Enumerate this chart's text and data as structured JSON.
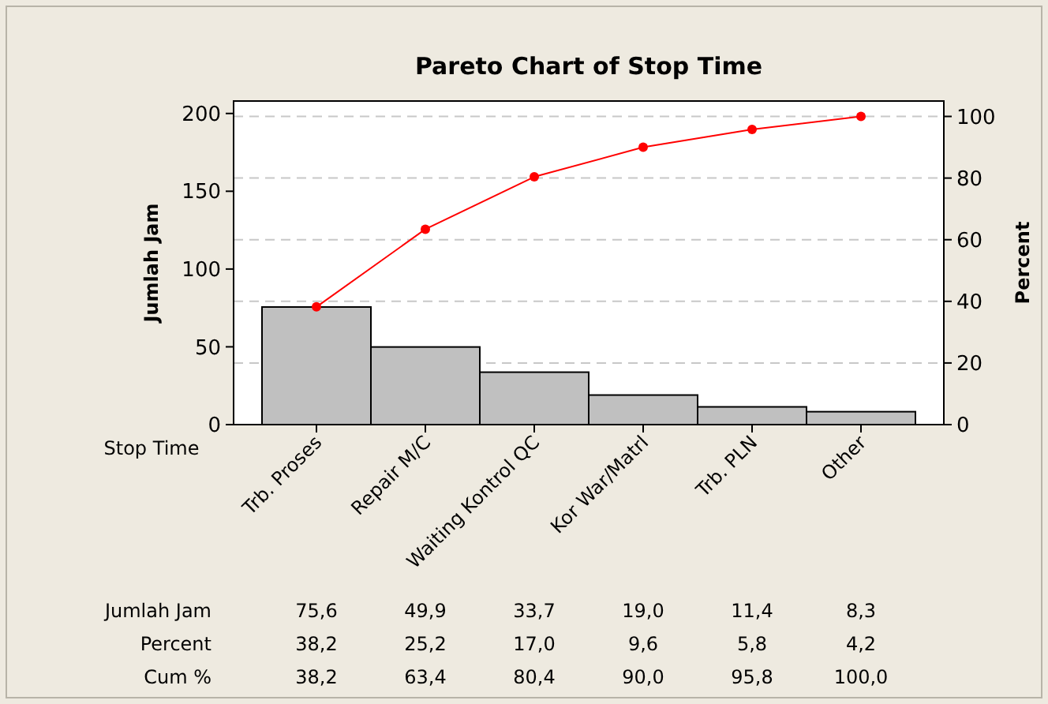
{
  "chart_data": {
    "type": "bar",
    "title": "Pareto Chart of Stop Time",
    "xlabel": "Stop Time",
    "ylabel": "Jumlah Jam",
    "y2label": "Percent",
    "categories": [
      "Trb. Proses",
      "Repair M/C",
      "Waiting Kontrol QC",
      "Kor War/Matrl",
      "Trb. PLN",
      "Other"
    ],
    "series": [
      {
        "color": "#c0c0c0",
        "values": [
          75.6,
          49.9,
          33.7,
          19.0,
          11.4,
          8.3
        ],
        "value_labels": [
          "75,6",
          "49,9",
          "33,7",
          "19,0",
          "11,4",
          "8,3"
        ]
      },
      {
        "type": "line",
        "axis": "y2",
        "color": "#ff0000",
        "values": [
          38.2,
          63.4,
          80.4,
          90.0,
          95.8,
          100.0
        ],
        "value_labels": [
          "38,2",
          "63,4",
          "80,4",
          "90,0",
          "95,8",
          "100,0"
        ]
      }
    ],
    "annotations": [
      "Jumlah Jam",
      "Percent",
      "Cum %",
      "38,2",
      "25,2",
      "17,0",
      "9,6",
      "5,8",
      "4,2"
    ],
    "ylim": [
      0,
      208
    ],
    "yticks": [
      0,
      50,
      100,
      150,
      200
    ],
    "y2lim": [
      0,
      105
    ],
    "y2ticks": [
      0,
      20,
      40,
      60,
      80,
      100
    ],
    "grid": "y",
    "marker": "circle",
    "line_style": "solid"
  }
}
